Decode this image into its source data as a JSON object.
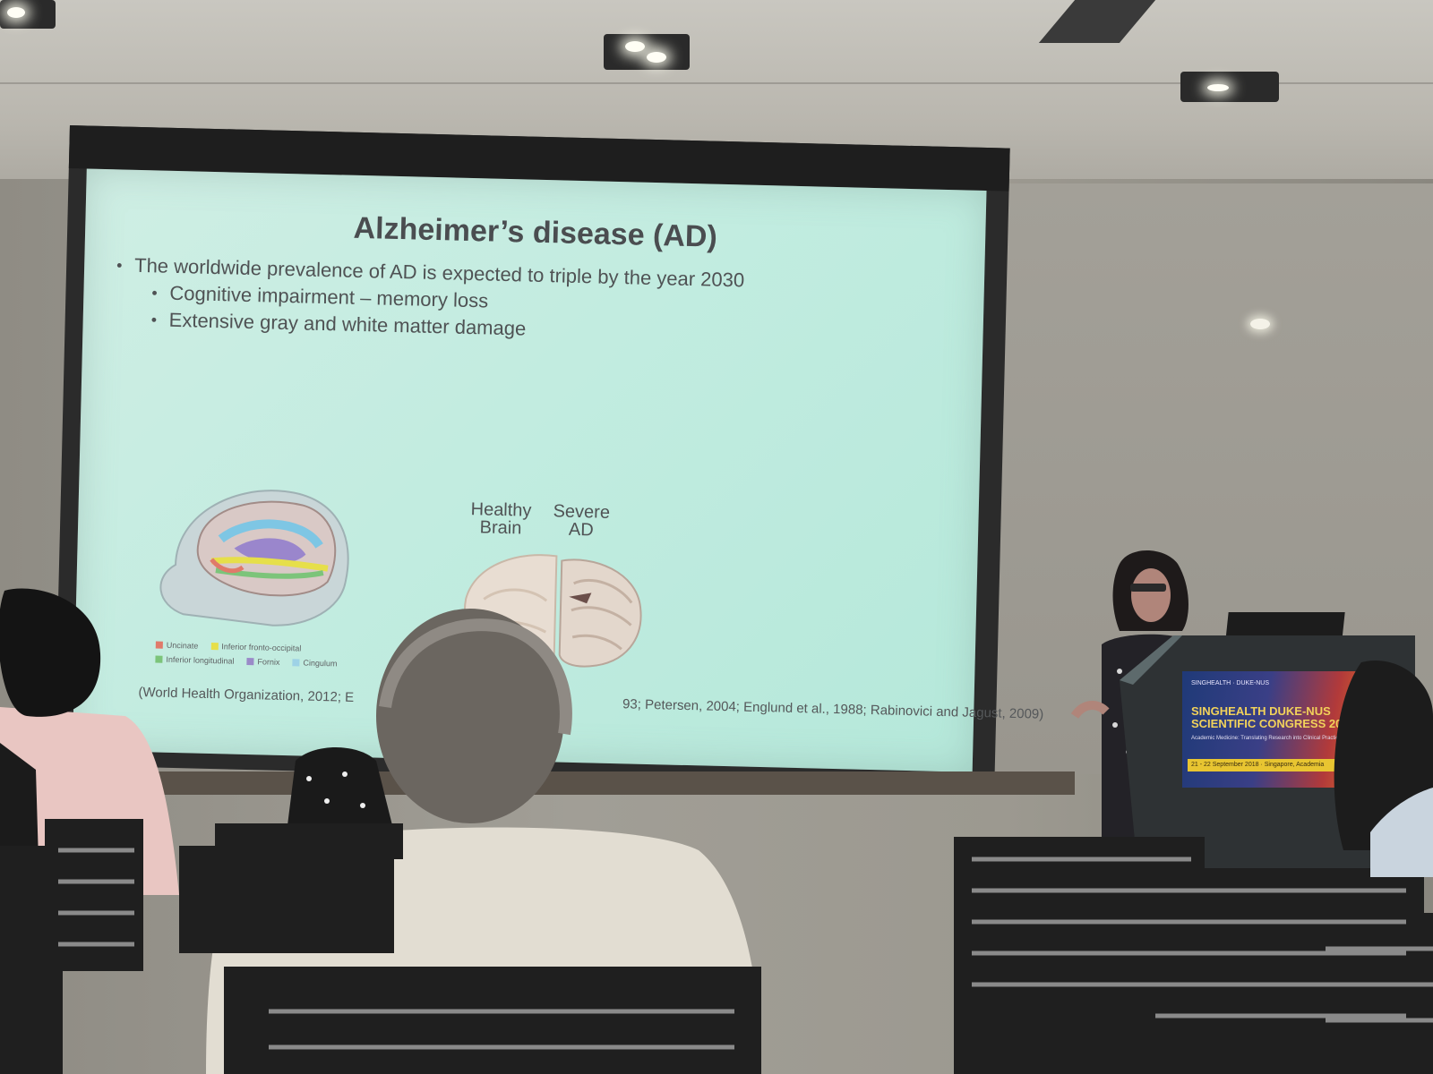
{
  "slide": {
    "title": "Alzheimer’s disease (AD)",
    "bullets": [
      "The worldwide prevalence of AD is expected to triple by the year 2030"
    ],
    "sub_bullets": [
      "Cognitive impairment – memory loss",
      "Extensive gray and white matter damage"
    ],
    "legend": [
      {
        "label": "Uncinate",
        "color": "#e07a6a"
      },
      {
        "label": "Inferior fronto-occipital",
        "color": "#e6df4a"
      },
      {
        "label": "Inferior longitudinal",
        "color": "#7cc47a"
      },
      {
        "label": "Fornix",
        "color": "#9a8ac8"
      },
      {
        "label": "Cingulum",
        "color": "#9ed2e6"
      }
    ],
    "brain_label_left": [
      "Healthy",
      "Brain"
    ],
    "brain_label_right": [
      "Severe",
      "AD"
    ],
    "citation_left": "(World Health Organization, 2012; E",
    "citation_right": "93; Petersen, 2004; Englund et al., 1988; Rabinovici and Jagust, 2009)"
  },
  "podium_banner": {
    "org": "SINGHEALTH · DUKE-NUS",
    "line1": "SINGHEALTH DUKE-NUS",
    "line2": "SCIENTIFIC CONGRESS 2018",
    "tagline": "Academic Medicine: Translating Research into Clinical Practice",
    "dates": "21 - 22 September 2018 · Singapore, Academia"
  },
  "colors": {
    "slide_bg": "#c2ece0",
    "slide_text": "#4f5254",
    "banner_blue": "#1f3a78",
    "banner_red": "#b23a3a",
    "banner_gold": "#e8c531"
  }
}
